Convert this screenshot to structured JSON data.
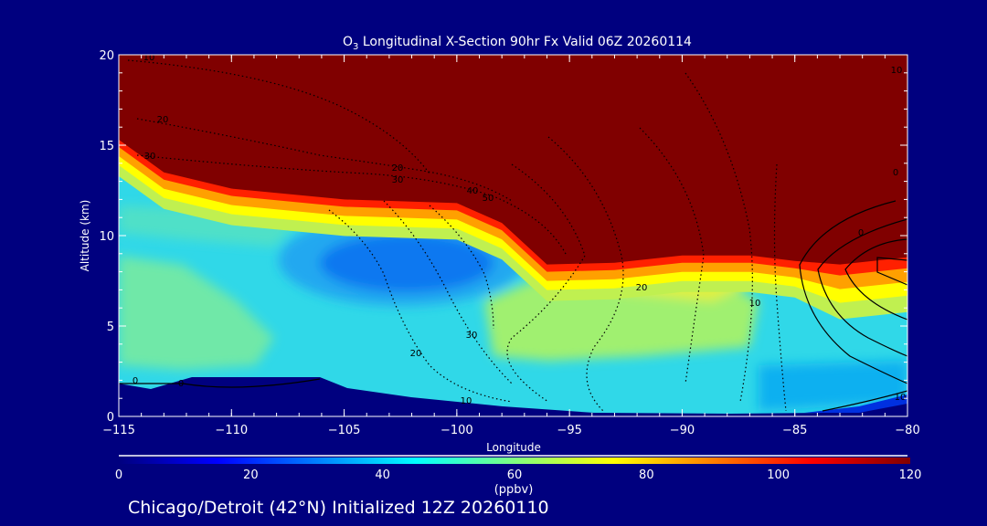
{
  "chart_data": {
    "type": "heatmap",
    "title_prefix": "O",
    "title_subscript": "3",
    "title": " Longitudinal X-Section 90hr  Fx Valid 06Z 20260114",
    "xlabel": "Longitude",
    "ylabel": "Altitude (km)",
    "xlim": [
      -115,
      -80
    ],
    "ylim": [
      0,
      20
    ],
    "x_ticks": [
      -115,
      -110,
      -105,
      -100,
      -95,
      -90,
      -85,
      -80
    ],
    "x_tick_labels": [
      "−115",
      "−110",
      "−105",
      "−100",
      "−95",
      "−90",
      "−85",
      "−80"
    ],
    "y_ticks": [
      0,
      5,
      10,
      15,
      20
    ],
    "y_tick_labels": [
      "0",
      "5",
      "10",
      "15",
      "20"
    ],
    "colorbar": {
      "range": [
        0,
        120
      ],
      "ticks": [
        "0",
        "20",
        "40",
        "60",
        "80",
        "100",
        "120"
      ],
      "units": "(ppbv)",
      "colors": [
        "#00007f",
        "#0000ff",
        "#00ffff",
        "#ffff00",
        "#ff0000",
        "#7f0000"
      ]
    },
    "tropopause_altitude_km": [
      [
        -115,
        15.3
      ],
      [
        -113,
        13.5
      ],
      [
        -110,
        12.6
      ],
      [
        -105,
        12.0
      ],
      [
        -100,
        11.8
      ],
      [
        -98,
        10.7
      ],
      [
        -96,
        8.4
      ],
      [
        -93,
        8.5
      ],
      [
        -90,
        8.9
      ],
      [
        -87,
        8.9
      ],
      [
        -85,
        8.6
      ],
      [
        -83,
        8.4
      ],
      [
        -80,
        8.8
      ]
    ],
    "ozone_minimum": {
      "lon": -103,
      "alt_km": 8.5,
      "ppbv": 30
    },
    "contour_labels": [
      "10",
      "20",
      "30",
      "20",
      "30",
      "40",
      "50",
      "20",
      "30",
      "20",
      "10",
      "10",
      "10",
      "0",
      "0",
      "0",
      "0",
      "10"
    ]
  },
  "footer": "Chicago/Detroit (42°N) Initialized 12Z 20260110"
}
